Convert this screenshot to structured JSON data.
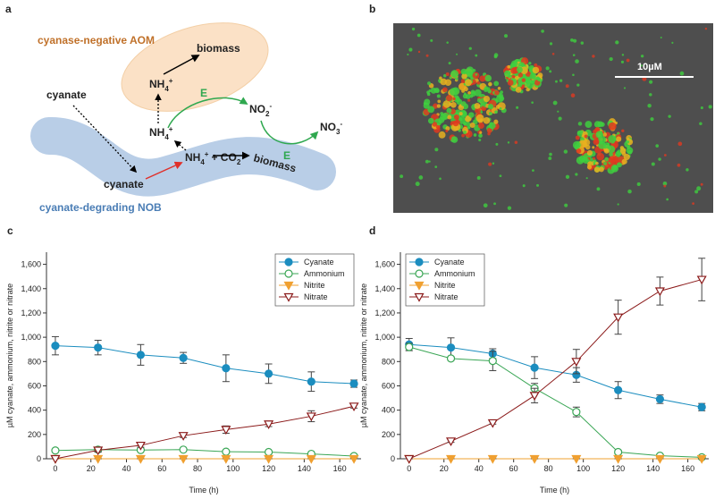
{
  "diagram": {
    "label": "a",
    "aom": "cyanase-negative AOM",
    "nob": "cyanate-degrading NOB",
    "biomass_aom": "biomass",
    "biomass_nob": "biomass",
    "cyanate_external": "cyanate",
    "cyanate_internal": "cyanate",
    "nh4_aom": [
      "NH",
      "4",
      "+"
    ],
    "nh4_released": [
      "NH",
      "4",
      "+"
    ],
    "nh4_co2": [
      "NH",
      "4",
      "+",
      "+ CO",
      "2"
    ],
    "no2": [
      "NO",
      "2",
      "-"
    ],
    "no3": [
      "NO",
      "3",
      "-"
    ],
    "enzyme_1": "E",
    "enzyme_2": "E"
  },
  "image": {
    "label": "b",
    "scale_bar": "10µM"
  },
  "chart_data": [
    {
      "panel": "c",
      "type": "line",
      "xlabel": "Time (h)",
      "ylabel": "µM cyanate, ammonium, nitrite or nitrate",
      "x": [
        0,
        24,
        48,
        72,
        96,
        120,
        144,
        168
      ],
      "xlim": [
        -5,
        172
      ],
      "xticks": [
        0,
        20,
        40,
        60,
        80,
        100,
        120,
        140,
        160
      ],
      "ylim": [
        0,
        1700
      ],
      "yticks": [
        0,
        200,
        400,
        600,
        800,
        {
          "value": 1000,
          "label": "1,000"
        },
        {
          "value": 1200,
          "label": "1,200"
        },
        {
          "value": 1400,
          "label": "1,400"
        },
        {
          "value": 1600,
          "label": "1,600"
        }
      ],
      "legend": "upper right",
      "series": [
        {
          "name": "Cyanate",
          "color": "#1b8dbf",
          "marker": "circle",
          "filled": true,
          "values": [
            930,
            915,
            855,
            830,
            745,
            700,
            635,
            618
          ],
          "errors": [
            75,
            60,
            85,
            45,
            110,
            80,
            80,
            30
          ]
        },
        {
          "name": "Ammonium",
          "color": "#3aa655",
          "marker": "circle",
          "filled": false,
          "values": [
            68,
            75,
            72,
            75,
            58,
            55,
            40,
            22
          ],
          "errors": [
            10,
            20,
            10,
            10,
            10,
            10,
            8,
            5
          ]
        },
        {
          "name": "Nitrite",
          "color": "#f0a030",
          "marker": "triangle-down",
          "filled": true,
          "values": [
            0,
            0,
            0,
            0,
            0,
            0,
            0,
            0
          ],
          "errors": [
            0,
            0,
            0,
            0,
            0,
            0,
            0,
            0
          ]
        },
        {
          "name": "Nitrate",
          "color": "#8b1a1a",
          "marker": "triangle-down",
          "filled": false,
          "values": [
            0,
            70,
            110,
            190,
            240,
            285,
            350,
            432
          ],
          "errors": [
            0,
            15,
            15,
            15,
            30,
            20,
            45,
            15
          ]
        }
      ]
    },
    {
      "panel": "d",
      "type": "line",
      "xlabel": "Time (h)",
      "ylabel": "µM cyanate, ammonium, nitrite or nitrate",
      "x": [
        0,
        24,
        48,
        72,
        96,
        120,
        144,
        168
      ],
      "xlim": [
        -5,
        172
      ],
      "xticks": [
        0,
        20,
        40,
        60,
        80,
        100,
        120,
        140,
        160
      ],
      "ylim": [
        0,
        1700
      ],
      "yticks": [
        0,
        200,
        400,
        600,
        800,
        {
          "value": 1000,
          "label": "1,000"
        },
        {
          "value": 1200,
          "label": "1,200"
        },
        {
          "value": 1400,
          "label": "1,400"
        },
        {
          "value": 1600,
          "label": "1,600"
        }
      ],
      "legend": "upper left",
      "series": [
        {
          "name": "Cyanate",
          "color": "#1b8dbf",
          "marker": "circle",
          "filled": true,
          "values": [
            940,
            915,
            865,
            750,
            690,
            565,
            490,
            425
          ],
          "errors": [
            50,
            80,
            40,
            90,
            60,
            70,
            35,
            30
          ]
        },
        {
          "name": "Ammonium",
          "color": "#3aa655",
          "marker": "circle",
          "filled": false,
          "values": [
            920,
            825,
            805,
            580,
            385,
            55,
            25,
            12
          ],
          "errors": [
            30,
            15,
            80,
            40,
            40,
            15,
            10,
            5
          ]
        },
        {
          "name": "Nitrite",
          "color": "#f0a030",
          "marker": "triangle-down",
          "filled": true,
          "values": [
            0,
            0,
            0,
            0,
            0,
            0,
            0,
            0
          ],
          "errors": [
            0,
            0,
            0,
            0,
            0,
            0,
            0,
            0
          ]
        },
        {
          "name": "Nitrate",
          "color": "#8b1a1a",
          "marker": "triangle-down",
          "filled": false,
          "values": [
            0,
            145,
            295,
            520,
            800,
            1165,
            1380,
            1475
          ],
          "errors": [
            0,
            10,
            10,
            60,
            100,
            140,
            115,
            175
          ]
        }
      ]
    }
  ]
}
